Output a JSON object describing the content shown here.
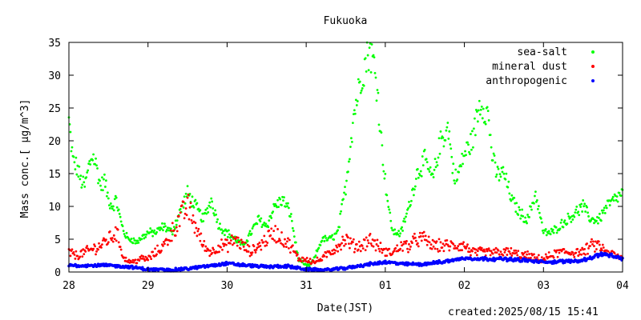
{
  "chart_data": {
    "type": "scatter",
    "title": "Fukuoka",
    "xlabel": "Date(JST)",
    "ylabel": "Mass conc.[ μg/m^3]",
    "xticks": [
      "28",
      "29",
      "30",
      "31",
      "01",
      "02",
      "03",
      "04"
    ],
    "xlim_days": [
      0,
      7
    ],
    "ylim": [
      0,
      35
    ],
    "yticks": [
      0,
      5,
      10,
      15,
      20,
      25,
      30,
      35
    ],
    "grid": false,
    "legend_position": "top-right",
    "series": [
      {
        "name": "sea-salt",
        "color": "#00ff00",
        "x": [
          0.0,
          0.05,
          0.1,
          0.15,
          0.2,
          0.25,
          0.3,
          0.35,
          0.4,
          0.45,
          0.5,
          0.55,
          0.6,
          0.65,
          0.7,
          0.75,
          0.8,
          0.85,
          0.9,
          0.95,
          1.0,
          1.1,
          1.2,
          1.3,
          1.4,
          1.5,
          1.6,
          1.7,
          1.8,
          1.9,
          2.0,
          2.1,
          2.2,
          2.3,
          2.4,
          2.5,
          2.6,
          2.7,
          2.8,
          2.9,
          3.0,
          3.05,
          3.1,
          3.2,
          3.3,
          3.4,
          3.5,
          3.6,
          3.7,
          3.8,
          3.85,
          3.9,
          3.95,
          4.0,
          4.05,
          4.1,
          4.2,
          4.3,
          4.4,
          4.5,
          4.6,
          4.7,
          4.8,
          4.85,
          4.9,
          5.0,
          5.1,
          5.2,
          5.3,
          5.35,
          5.4,
          5.5,
          5.6,
          5.7,
          5.8,
          5.9,
          6.0,
          6.1,
          6.2,
          6.3,
          6.4,
          6.5,
          6.6,
          6.7,
          6.8,
          6.9,
          7.0
        ],
        "values": [
          23,
          17,
          16,
          14,
          13,
          16,
          18,
          16,
          13,
          14,
          11,
          10,
          11,
          8,
          6,
          5,
          5,
          4.5,
          5,
          5.5,
          6,
          6,
          7,
          6,
          9,
          12,
          10,
          8,
          11,
          7,
          6,
          5,
          4,
          6,
          8,
          7,
          10,
          11,
          9,
          2,
          1,
          1,
          2,
          5,
          5,
          6,
          13,
          24,
          30,
          34,
          32,
          28,
          20,
          14,
          9,
          6,
          6,
          10,
          15,
          17,
          14,
          20,
          22,
          16,
          14,
          18,
          20,
          26,
          24,
          18,
          15,
          15,
          11,
          9,
          8,
          12,
          6,
          6,
          7,
          8,
          9,
          10,
          8,
          8,
          10,
          11,
          12
        ]
      },
      {
        "name": "mineral dust",
        "color": "#ff0000",
        "x": [
          0.0,
          0.1,
          0.2,
          0.3,
          0.4,
          0.5,
          0.6,
          0.7,
          0.8,
          0.9,
          1.0,
          1.1,
          1.2,
          1.3,
          1.4,
          1.5,
          1.6,
          1.7,
          1.8,
          1.9,
          2.0,
          2.1,
          2.2,
          2.3,
          2.4,
          2.5,
          2.6,
          2.7,
          2.8,
          2.9,
          3.0,
          3.1,
          3.2,
          3.3,
          3.4,
          3.5,
          3.6,
          3.7,
          3.8,
          3.9,
          4.0,
          4.1,
          4.2,
          4.3,
          4.4,
          4.5,
          4.6,
          4.7,
          4.8,
          4.9,
          5.0,
          5.1,
          5.2,
          5.3,
          5.4,
          5.5,
          5.6,
          5.7,
          5.8,
          5.9,
          6.0,
          6.1,
          6.2,
          6.3,
          6.4,
          6.5,
          6.6,
          6.7,
          6.8,
          6.9,
          7.0
        ],
        "values": [
          3,
          2.5,
          3,
          3.5,
          4,
          5,
          6,
          2,
          1.5,
          2,
          2,
          3,
          4,
          6,
          8,
          10,
          7,
          4,
          3,
          4,
          4,
          5,
          4,
          3,
          4,
          5,
          6,
          5,
          4,
          2,
          2,
          1.5,
          2,
          3,
          4,
          5,
          4,
          4,
          5,
          4,
          3,
          3,
          4,
          4,
          5,
          5,
          4,
          4,
          4,
          4,
          4,
          3,
          3,
          3,
          3,
          3,
          3,
          2.5,
          2.5,
          2,
          2,
          2.5,
          3,
          3,
          3,
          3,
          4,
          4,
          3,
          2.5,
          2
        ]
      },
      {
        "name": "anthropogenic",
        "color": "#0000ff",
        "x": [
          0.0,
          0.25,
          0.5,
          0.75,
          1.0,
          1.25,
          1.5,
          1.75,
          2.0,
          2.25,
          2.5,
          2.75,
          3.0,
          3.25,
          3.5,
          3.75,
          4.0,
          4.25,
          4.5,
          4.75,
          5.0,
          5.25,
          5.5,
          5.75,
          6.0,
          6.25,
          6.5,
          6.75,
          7.0
        ],
        "values": [
          1,
          1,
          1,
          0.8,
          0.4,
          0.3,
          0.5,
          0.9,
          1.3,
          1,
          0.8,
          0.9,
          0.4,
          0.3,
          0.6,
          1.1,
          1.5,
          1.2,
          1.2,
          1.6,
          2.1,
          2,
          2,
          1.8,
          1.5,
          1.6,
          1.8,
          2.8,
          2
        ]
      }
    ]
  },
  "footer": {
    "created": "created:2025/08/15 15:41"
  }
}
